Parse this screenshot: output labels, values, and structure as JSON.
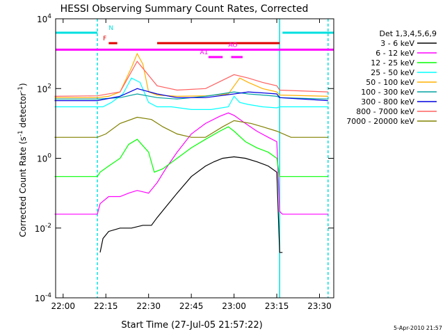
{
  "chart_data": {
    "type": "line",
    "title": "HESSI Observing Summary Count Rates, Corrected",
    "xlabel": "Start Time (27-Jul-05 21:57:22)",
    "ylabel": "Corrected Count Rate (s",
    "ylabel_sup1": "-1",
    "ylabel_mid": " detector",
    "ylabel_sup2": "-1",
    "ylabel_end": ")",
    "footer": "5-Apr-2010 21:57",
    "y_scale": "log",
    "ylim": [
      0.0001,
      10000
    ],
    "xlim": [
      "21:57:22",
      "23:35:00"
    ],
    "x_ticks": [
      "22:00",
      "22:15",
      "22:30",
      "22:45",
      "23:00",
      "23:15",
      "23:30"
    ],
    "y_ticks": [
      {
        "base": "10",
        "exp": "-4"
      },
      {
        "base": "10",
        "exp": "-2"
      },
      {
        "base": "10",
        "exp": "0"
      },
      {
        "base": "10",
        "exp": "2"
      },
      {
        "base": "10",
        "exp": "4"
      }
    ],
    "legend_title": "Det 1,3,4,5,6,9",
    "legend_position": "right",
    "flags": [
      {
        "label": "N",
        "color": "#00e0e0"
      },
      {
        "label": "F",
        "color": "#e00000"
      },
      {
        "label": "AO",
        "color": "#ff00ff"
      },
      {
        "label": "A1",
        "color": "#ff00ff"
      }
    ],
    "night_boundaries": [
      "22:12",
      "23:16",
      "23:33"
    ],
    "series": [
      {
        "name": "3 - 6 keV",
        "color": "#000000",
        "x": [
          "22:13",
          "22:14",
          "22:16",
          "22:20",
          "22:24",
          "22:28",
          "22:31",
          "22:33",
          "22:36",
          "22:40",
          "22:45",
          "22:50",
          "22:53",
          "22:56",
          "23:00",
          "23:04",
          "23:08",
          "23:12",
          "23:15",
          "23:16",
          "23:17"
        ],
        "y": [
          0.002,
          0.005,
          0.008,
          0.01,
          0.01,
          0.012,
          0.012,
          0.02,
          0.04,
          0.1,
          0.3,
          0.6,
          0.8,
          1.0,
          1.1,
          1.0,
          0.8,
          0.6,
          0.4,
          0.002,
          0.002
        ]
      },
      {
        "name": "6 - 12 keV",
        "color": "#ff00ff",
        "x": [
          "21:57",
          "22:12",
          "22:13",
          "22:16",
          "22:20",
          "22:23",
          "22:26",
          "22:30",
          "22:33",
          "22:36",
          "22:40",
          "22:45",
          "22:50",
          "22:55",
          "22:58",
          "23:00",
          "23:04",
          "23:08",
          "23:12",
          "23:15",
          "23:16",
          "23:17",
          "23:33"
        ],
        "y": [
          0.025,
          0.025,
          0.05,
          0.08,
          0.08,
          0.1,
          0.12,
          0.1,
          0.2,
          0.5,
          1.5,
          5.0,
          10,
          16,
          20,
          17,
          10,
          6,
          4,
          3,
          0.03,
          0.025,
          0.025
        ]
      },
      {
        "name": "12 - 25 keV",
        "color": "#00ff00",
        "x": [
          "21:57",
          "22:12",
          "22:13",
          "22:16",
          "22:20",
          "22:23",
          "22:26",
          "22:30",
          "22:32",
          "22:35",
          "22:40",
          "22:45",
          "22:50",
          "22:55",
          "22:58",
          "23:00",
          "23:04",
          "23:08",
          "23:12",
          "23:15",
          "23:16",
          "23:17",
          "23:33"
        ],
        "y": [
          0.3,
          0.3,
          0.4,
          0.6,
          1.0,
          2.5,
          3.5,
          1.5,
          0.4,
          0.5,
          1.0,
          2.0,
          3.5,
          6.0,
          8.0,
          6.0,
          3.0,
          2.0,
          1.5,
          1.0,
          0.3,
          0.3,
          0.3
        ]
      },
      {
        "name": "25 - 50 keV",
        "color": "#00ffff",
        "x": [
          "21:57",
          "22:12",
          "22:14",
          "22:17",
          "22:21",
          "22:24",
          "22:27",
          "22:30",
          "22:33",
          "22:38",
          "22:45",
          "22:52",
          "22:58",
          "23:00",
          "23:02",
          "23:05",
          "23:10",
          "23:15",
          "23:16",
          "23:17",
          "23:33"
        ],
        "y": [
          30,
          30,
          30,
          40,
          70,
          200,
          150,
          40,
          30,
          30,
          25,
          25,
          30,
          60,
          40,
          35,
          30,
          28,
          30,
          30,
          30
        ]
      },
      {
        "name": "50 - 100 keV",
        "color": "#ffb000",
        "x": [
          "21:57",
          "22:12",
          "22:16",
          "22:20",
          "22:24",
          "22:26",
          "22:28",
          "22:30",
          "22:33",
          "22:40",
          "22:50",
          "22:58",
          "23:02",
          "23:05",
          "23:10",
          "23:15",
          "23:16",
          "23:33"
        ],
        "y": [
          55,
          55,
          60,
          80,
          400,
          1000,
          500,
          80,
          65,
          60,
          62,
          70,
          200,
          150,
          100,
          80,
          65,
          60
        ]
      },
      {
        "name": "100 - 300 keV",
        "color": "#00a0a0",
        "x": [
          "21:57",
          "22:12",
          "22:20",
          "22:26",
          "22:33",
          "22:40",
          "22:50",
          "23:00",
          "23:05",
          "23:10",
          "23:15",
          "23:16",
          "23:33"
        ],
        "y": [
          50,
          50,
          55,
          70,
          55,
          50,
          60,
          80,
          70,
          65,
          60,
          55,
          50
        ]
      },
      {
        "name": "300 - 800 keV",
        "color": "#0000e0",
        "x": [
          "21:57",
          "22:12",
          "22:20",
          "22:26",
          "22:33",
          "22:40",
          "22:50",
          "23:00",
          "23:05",
          "23:10",
          "23:15",
          "23:16",
          "23:33"
        ],
        "y": [
          45,
          45,
          60,
          100,
          70,
          55,
          55,
          70,
          80,
          75,
          70,
          55,
          45
        ]
      },
      {
        "name": "800 - 7000 keV",
        "color": "#ff6060",
        "x": [
          "21:57",
          "22:12",
          "22:20",
          "22:26",
          "22:33",
          "22:40",
          "22:50",
          "23:00",
          "23:05",
          "23:10",
          "23:15",
          "23:16",
          "23:33"
        ],
        "y": [
          60,
          62,
          80,
          600,
          120,
          90,
          100,
          250,
          200,
          150,
          120,
          90,
          80
        ]
      },
      {
        "name": "7000 - 20000 keV",
        "color": "#808000",
        "x": [
          "21:57",
          "22:12",
          "22:15",
          "22:20",
          "22:26",
          "22:31",
          "22:35",
          "22:40",
          "22:45",
          "22:50",
          "22:56",
          "23:00",
          "23:06",
          "23:10",
          "23:15",
          "23:20",
          "23:25",
          "23:33"
        ],
        "y": [
          4,
          4,
          5,
          10,
          15,
          13,
          8,
          5,
          4,
          4,
          8,
          12,
          10,
          8,
          6,
          4,
          4,
          4
        ]
      }
    ]
  }
}
